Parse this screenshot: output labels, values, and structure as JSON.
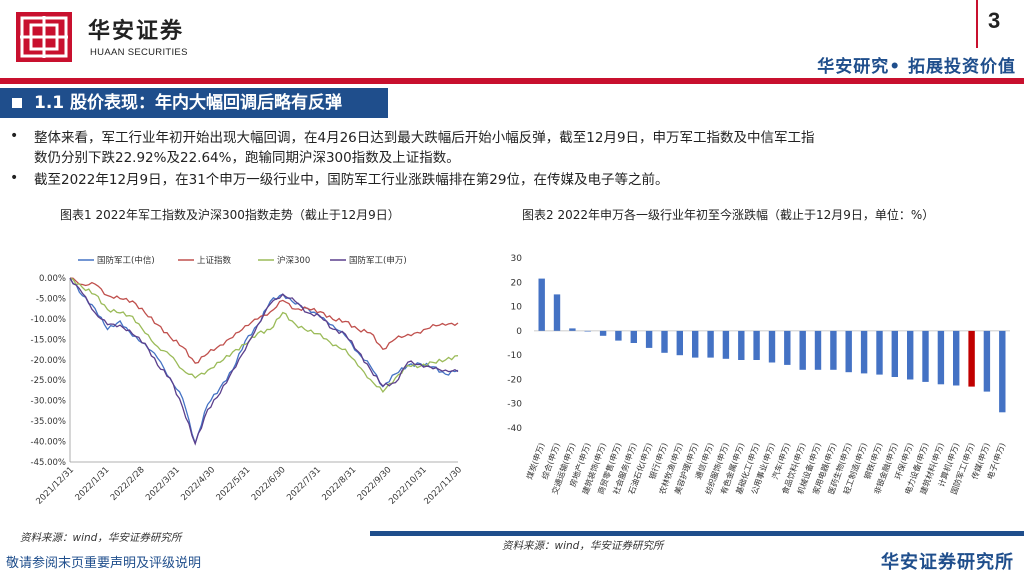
{
  "header": {
    "logo_cn": "华安证券",
    "logo_en": "HUAAN SECURITIES",
    "page_number": "3",
    "tagline": "华安研究• 拓展投资价值",
    "brand_red": "#c8102e",
    "brand_blue": "#1f4e8c"
  },
  "section": {
    "title": "1.1 股价表现：年内大幅回调后略有反弹"
  },
  "bullets": [
    "整体来看，军工行业年初开始出现大幅回调，在4月26日达到最大跌幅后开始小幅反弹，截至12月9日，申万军工指数及中信军工指",
    "数仍分别下跌22.92%及22.64%，跑输同期沪深300指数及上证指数。",
    "截至2022年12月9日，在31个申万一级行业中，国防军工行业涨跌幅排在第29位，在传媒及电子等之前。"
  ],
  "figure1": {
    "caption": "图表1  2022年军工指数及沪深300指数走势（截止于12月9日）",
    "source": "资料来源：wind，华安证券研究所"
  },
  "figure2": {
    "caption": "图表2  2022年申万各一级行业年初至今涨跌幅（截止于12月9日，单位：%）",
    "source": "资料来源：wind，华安证券研究所"
  },
  "footer": {
    "disclaimer": "敬请参阅末页重要声明及评级说明",
    "institute": "华安证券研究所"
  },
  "chart_data": [
    {
      "type": "line",
      "legend_position": "top",
      "series": [
        {
          "name": "国防军工(中信)",
          "color": "#4472c4",
          "values": [
            0,
            -4,
            -8,
            -12,
            -11,
            -14,
            -16,
            -20,
            -24,
            -30,
            -40,
            -31,
            -27,
            -22,
            -16,
            -11,
            -6,
            -4,
            -6,
            -8,
            -9,
            -12,
            -14,
            -18,
            -22,
            -26,
            -24,
            -21,
            -21,
            -22,
            -23,
            -22.6
          ]
        },
        {
          "name": "上证指数",
          "color": "#c0504d",
          "values": [
            0,
            -1,
            -2,
            -4,
            -5,
            -6,
            -8,
            -12,
            -14,
            -17,
            -21,
            -18,
            -17,
            -14,
            -12,
            -10,
            -8,
            -6,
            -7,
            -8,
            -8,
            -10,
            -11,
            -12,
            -14,
            -17,
            -15,
            -14,
            -13,
            -12,
            -11,
            -11
          ]
        },
        {
          "name": "沪深300",
          "color": "#9bbb59",
          "values": [
            0,
            -2,
            -4,
            -8,
            -8,
            -10,
            -13,
            -17,
            -19,
            -22,
            -25,
            -22,
            -21,
            -18,
            -16,
            -14,
            -12,
            -9,
            -11,
            -13,
            -14,
            -16,
            -18,
            -21,
            -25,
            -28,
            -24,
            -22,
            -21,
            -21,
            -20,
            -19
          ]
        },
        {
          "name": "国防军工(申万)",
          "color": "#5b3f8c",
          "values": [
            0,
            -4,
            -8,
            -12,
            -11,
            -14,
            -16,
            -21,
            -25,
            -31,
            -41,
            -32,
            -28,
            -23,
            -17,
            -12,
            -6,
            -4,
            -6,
            -8,
            -10,
            -12,
            -14,
            -18,
            -22,
            -27,
            -25,
            -21,
            -21,
            -22,
            -23,
            -22.9
          ]
        }
      ],
      "x_ticks": [
        "2021/12/31",
        "2022/1/31",
        "2022/2/28",
        "2022/3/31",
        "2022/4/30",
        "2022/5/31",
        "2022/6/30",
        "2022/7/31",
        "2022/8/31",
        "2022/9/30",
        "2022/10/31",
        "2022/11/30"
      ],
      "y_ticks": [
        "0.00%",
        "-5.00%",
        "-10.00%",
        "-15.00%",
        "-20.00%",
        "-25.00%",
        "-30.00%",
        "-35.00%",
        "-40.00%",
        "-45.00%"
      ],
      "ylim": [
        -45,
        0
      ]
    },
    {
      "type": "bar",
      "categories": [
        "煤炭(申万)",
        "综合(申万)",
        "交通运输(申万)",
        "房地产(申万)",
        "建筑装饰(申万)",
        "商贸零售(申万)",
        "社会服务(申万)",
        "石油石化(申万)",
        "银行(申万)",
        "农林牧渔(申万)",
        "美容护理(申万)",
        "通信(申万)",
        "纺织服饰(申万)",
        "有色金属(申万)",
        "基础化工(申万)",
        "公用事业(申万)",
        "汽车(申万)",
        "食品饮料(申万)",
        "机械设备(申万)",
        "家用电器(申万)",
        "医药生物(申万)",
        "轻工制造(申万)",
        "钢铁(申万)",
        "非银金融(申万)",
        "环保(申万)",
        "电力设备(申万)",
        "建筑材料(申万)",
        "计算机(申万)",
        "国防军工(申万)",
        "传媒(申万)",
        "电子(申万)"
      ],
      "values": [
        21.5,
        15,
        1,
        0,
        -2,
        -4,
        -5,
        -7,
        -9,
        -10,
        -11,
        -11,
        -11.5,
        -12,
        -12,
        -13,
        -14,
        -16,
        -16,
        -16,
        -17,
        -17.5,
        -18,
        -19,
        -20,
        -21,
        -22,
        -22.5,
        -22.92,
        -25,
        -33.5
      ],
      "highlight_category": "国防军工(申万)",
      "bar_color": "#4472c4",
      "highlight_color": "#c00000",
      "y_ticks": [
        "30",
        "20",
        "10",
        "0",
        "-10",
        "-20",
        "-30",
        "-40"
      ],
      "ylim": [
        -40,
        30
      ]
    }
  ]
}
